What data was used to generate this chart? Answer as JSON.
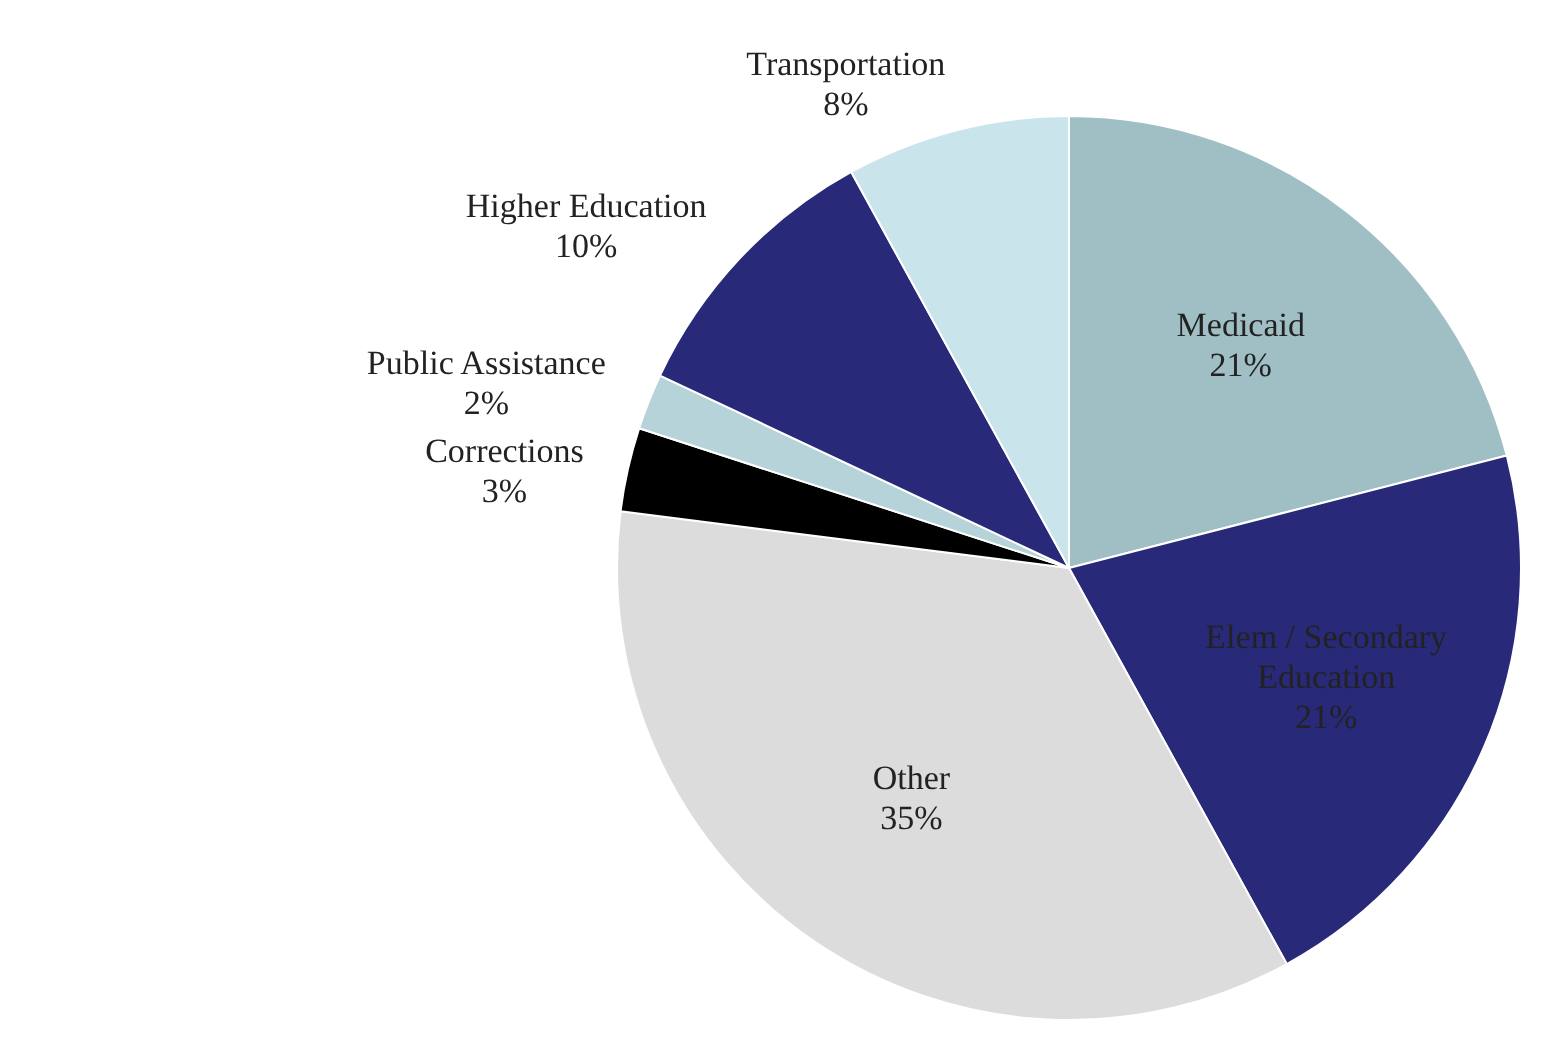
{
  "chart_data": {
    "type": "pie",
    "categories": [
      "Medicaid",
      "Elem / Secondary Education",
      "Other",
      "Corrections",
      "Public Assistance",
      "Higher Education",
      "Transportation"
    ],
    "values": [
      21,
      21,
      35,
      3,
      2,
      10,
      8
    ],
    "value_labels": [
      "21%",
      "21%",
      "35%",
      "3%",
      "2%",
      "10%",
      "8%"
    ],
    "colors": [
      "#9fbfc4",
      "#29297a",
      "#dcdcdc",
      "#000000",
      "#b5d3d9",
      "#29297a",
      "#c9e4ea"
    ],
    "legend": false
  }
}
